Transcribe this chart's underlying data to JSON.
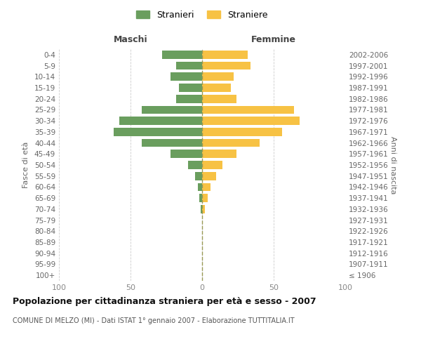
{
  "age_groups": [
    "100+",
    "95-99",
    "90-94",
    "85-89",
    "80-84",
    "75-79",
    "70-74",
    "65-69",
    "60-64",
    "55-59",
    "50-54",
    "45-49",
    "40-44",
    "35-39",
    "30-34",
    "25-29",
    "20-24",
    "15-19",
    "10-14",
    "5-9",
    "0-4"
  ],
  "birth_years": [
    "≤ 1906",
    "1907-1911",
    "1912-1916",
    "1917-1921",
    "1922-1926",
    "1927-1931",
    "1932-1936",
    "1937-1941",
    "1942-1946",
    "1947-1951",
    "1952-1956",
    "1957-1961",
    "1962-1966",
    "1967-1971",
    "1972-1976",
    "1977-1981",
    "1982-1986",
    "1987-1991",
    "1992-1996",
    "1997-2001",
    "2002-2006"
  ],
  "maschi": [
    0,
    0,
    0,
    0,
    0,
    0,
    1,
    2,
    3,
    5,
    10,
    22,
    42,
    62,
    58,
    42,
    18,
    16,
    22,
    18,
    28
  ],
  "femmine": [
    0,
    0,
    0,
    0,
    0,
    0,
    2,
    4,
    6,
    10,
    14,
    24,
    40,
    56,
    68,
    64,
    24,
    20,
    22,
    34,
    32
  ],
  "color_maschi": "#6a9e5e",
  "color_femmine": "#f7c244",
  "color_grid": "#cccccc",
  "color_center_line": "#999955",
  "bar_height": 0.75,
  "xlim": 100,
  "title": "Popolazione per cittadinanza straniera per età e sesso - 2007",
  "subtitle": "COMUNE DI MELZO (MI) - Dati ISTAT 1° gennaio 2007 - Elaborazione TUTTITALIA.IT",
  "legend_stranieri": "Stranieri",
  "legend_straniere": "Straniere",
  "xlabel_left": "Maschi",
  "xlabel_right": "Femmine",
  "ylabel_left": "Fasce di età",
  "ylabel_right": "Anni di nascita",
  "background_color": "#ffffff"
}
